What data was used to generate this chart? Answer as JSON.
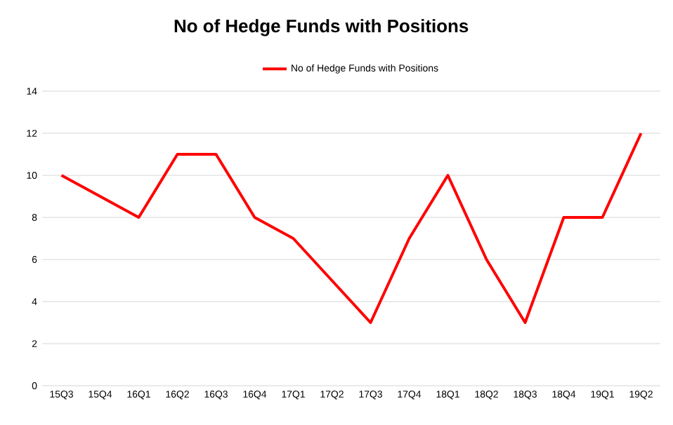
{
  "chart_data": {
    "type": "line",
    "title": "No of Hedge Funds with Positions",
    "categories": [
      "15Q3",
      "15Q4",
      "16Q1",
      "16Q2",
      "16Q3",
      "16Q4",
      "17Q1",
      "17Q2",
      "17Q3",
      "17Q4",
      "18Q1",
      "18Q2",
      "18Q3",
      "18Q4",
      "19Q1",
      "19Q2"
    ],
    "series": [
      {
        "name": "No of Hedge Funds with Positions",
        "color": "#ff0000",
        "values": [
          10,
          9,
          8,
          11,
          11,
          8,
          7,
          5,
          3,
          7,
          10,
          6,
          3,
          8,
          8,
          12
        ]
      }
    ],
    "ylim": [
      0,
      14
    ],
    "yticks": [
      0,
      2,
      4,
      6,
      8,
      10,
      12,
      14
    ],
    "grid": "y",
    "legend": "top",
    "marker": "none",
    "line_style": "solid"
  }
}
